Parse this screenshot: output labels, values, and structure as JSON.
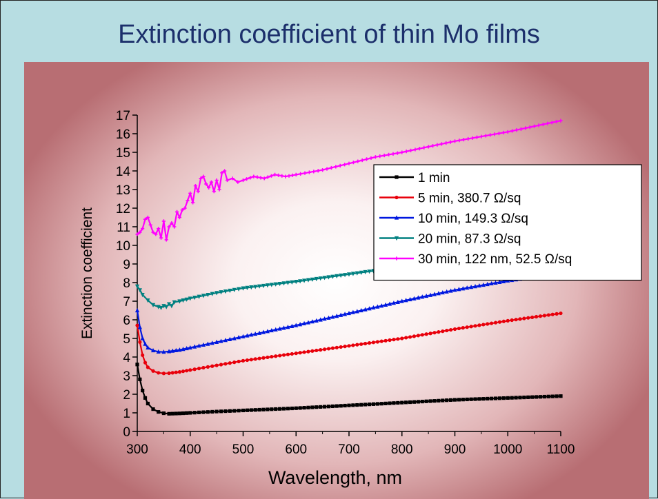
{
  "slide": {
    "title": "Extinction coefficient of thin Mo films"
  },
  "colors": {
    "background": "#b7dde2",
    "title": "#1c2f6b",
    "panel_center": "#ffffff",
    "panel_edge": "#b86e73"
  },
  "chart_data": {
    "type": "line",
    "title": "",
    "xlabel": "Wavelength, nm",
    "ylabel": "Extinction coefficient",
    "xlim": [
      300,
      1100
    ],
    "ylim": [
      0,
      17
    ],
    "xticks": [
      300,
      400,
      500,
      600,
      700,
      800,
      900,
      1000,
      1100
    ],
    "yticks": [
      0,
      1,
      2,
      3,
      4,
      5,
      6,
      7,
      8,
      9,
      10,
      11,
      12,
      13,
      14,
      15,
      16,
      17
    ],
    "grid": false,
    "legend_position": "top-right",
    "series": [
      {
        "name": "1 min",
        "color": "#000000",
        "marker": "square",
        "x": [
          300,
          305,
          310,
          315,
          320,
          330,
          340,
          350,
          360,
          380,
          400,
          450,
          500,
          600,
          700,
          800,
          900,
          1000,
          1100
        ],
        "y": [
          3.6,
          2.8,
          2.2,
          1.8,
          1.5,
          1.2,
          1.05,
          0.98,
          0.95,
          0.97,
          1.0,
          1.07,
          1.13,
          1.25,
          1.4,
          1.55,
          1.7,
          1.8,
          1.9
        ]
      },
      {
        "name": "5 min, 380.7 Ω/sq",
        "color": "#e8000b",
        "marker": "circle",
        "x": [
          300,
          305,
          310,
          315,
          320,
          330,
          340,
          350,
          360,
          380,
          400,
          450,
          500,
          600,
          700,
          800,
          900,
          1000,
          1100
        ],
        "y": [
          5.7,
          4.8,
          4.1,
          3.7,
          3.45,
          3.25,
          3.15,
          3.12,
          3.13,
          3.2,
          3.3,
          3.55,
          3.8,
          4.2,
          4.6,
          5.0,
          5.5,
          5.95,
          6.35
        ]
      },
      {
        "name": "10 min, 149.3 Ω/sq",
        "color": "#0018e0",
        "marker": "triangle-up",
        "x": [
          300,
          305,
          310,
          315,
          320,
          330,
          340,
          350,
          360,
          380,
          400,
          450,
          500,
          600,
          700,
          800,
          900,
          1000,
          1100
        ],
        "y": [
          6.5,
          5.6,
          5.0,
          4.7,
          4.5,
          4.35,
          4.28,
          4.27,
          4.3,
          4.38,
          4.5,
          4.8,
          5.1,
          5.7,
          6.35,
          7.0,
          7.6,
          8.1,
          8.5
        ]
      },
      {
        "name": "20 min, 87.3 Ω/sq",
        "color": "#008080",
        "marker": "triangle-down",
        "x": [
          300,
          305,
          310,
          320,
          330,
          340,
          345,
          350,
          355,
          360,
          365,
          370,
          380,
          400,
          450,
          500,
          600,
          700,
          800,
          900
        ],
        "y": [
          7.8,
          7.6,
          7.35,
          7.05,
          6.8,
          6.7,
          6.65,
          6.75,
          6.7,
          6.85,
          6.75,
          6.95,
          7.0,
          7.15,
          7.45,
          7.7,
          8.05,
          8.45,
          8.85,
          9.2
        ]
      },
      {
        "name": "30 min, 122 nm, 52.5 Ω/sq",
        "color": "#ff00ff",
        "marker": "star",
        "x": [
          300,
          305,
          310,
          315,
          320,
          325,
          330,
          335,
          340,
          345,
          350,
          355,
          360,
          365,
          370,
          375,
          380,
          385,
          390,
          395,
          400,
          405,
          410,
          415,
          420,
          425,
          430,
          435,
          440,
          445,
          450,
          455,
          460,
          465,
          470,
          480,
          490,
          500,
          520,
          540,
          560,
          580,
          600,
          650,
          700,
          750,
          800,
          850,
          900,
          950,
          1000,
          1050,
          1100
        ],
        "y": [
          10.6,
          10.7,
          10.9,
          11.4,
          11.5,
          11.1,
          10.7,
          10.6,
          10.9,
          10.4,
          11.3,
          10.3,
          11.0,
          11.2,
          11.0,
          11.8,
          11.5,
          11.9,
          12.0,
          12.4,
          12.8,
          12.3,
          13.2,
          12.9,
          13.6,
          13.7,
          13.3,
          13.1,
          13.4,
          12.9,
          13.5,
          13.0,
          13.9,
          14.0,
          13.5,
          13.6,
          13.4,
          13.5,
          13.7,
          13.6,
          13.8,
          13.7,
          13.8,
          14.05,
          14.4,
          14.75,
          15.0,
          15.3,
          15.6,
          15.85,
          16.1,
          16.4,
          16.7
        ]
      }
    ]
  }
}
